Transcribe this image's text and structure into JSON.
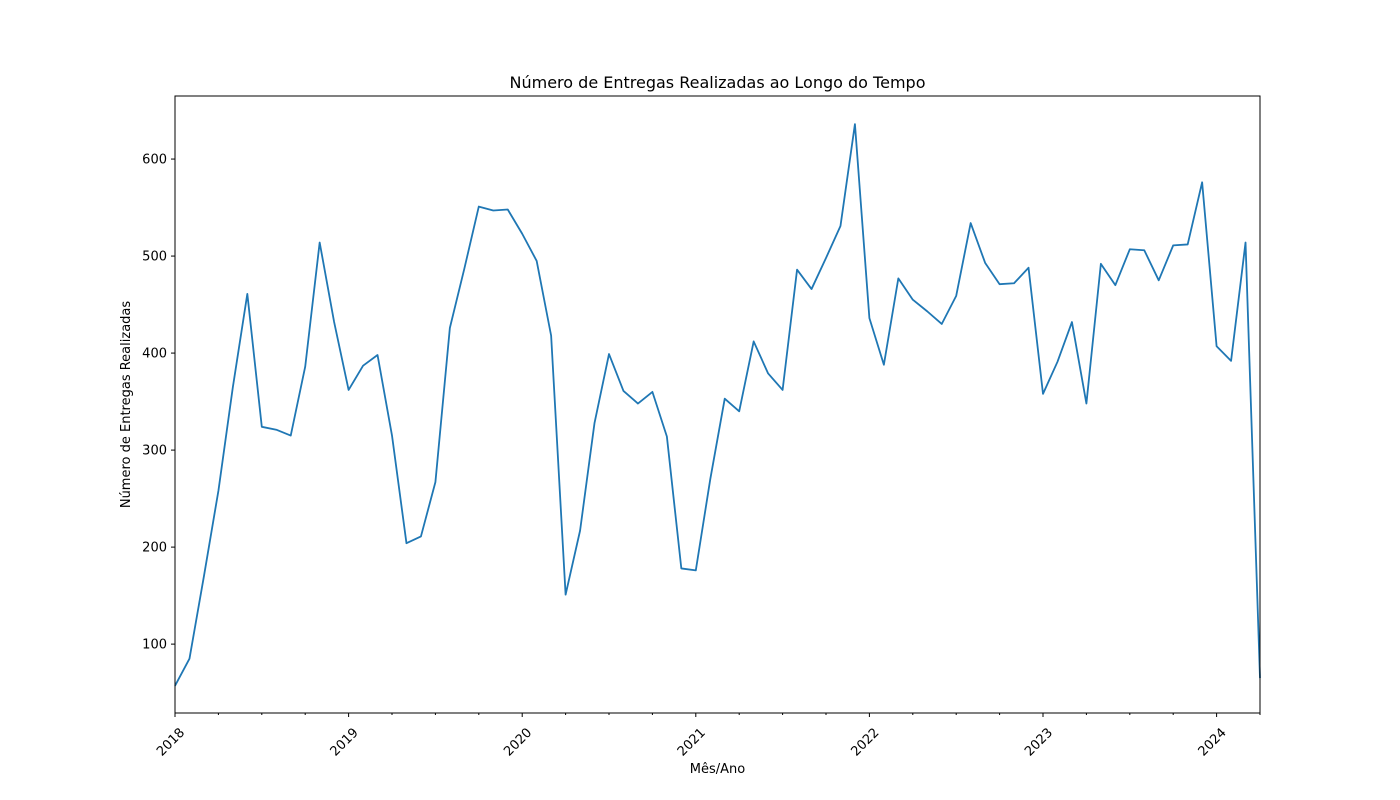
{
  "chart_data": {
    "type": "line",
    "title": "Número de Entregas Realizadas ao Longo do Tempo",
    "xlabel": "Mês/Ano",
    "ylabel": "Número de Entregas Realizadas",
    "x_tick_labels": [
      "2018",
      "2019",
      "2020",
      "2021",
      "2022",
      "2023",
      "2024"
    ],
    "y_ticks": [
      100,
      200,
      300,
      400,
      500,
      600
    ],
    "xlim": [
      "2018-01",
      "2024-04"
    ],
    "ylim": [
      29,
      665
    ],
    "grid": false,
    "line_color": "#1f77b4",
    "series": [
      {
        "x": [
          "2018-01",
          "2018-02",
          "2018-03",
          "2018-04",
          "2018-05",
          "2018-06",
          "2018-07",
          "2018-08",
          "2018-09",
          "2018-10",
          "2018-11",
          "2018-12",
          "2019-01",
          "2019-02",
          "2019-03",
          "2019-04",
          "2019-05",
          "2019-06",
          "2019-07",
          "2019-08",
          "2019-09",
          "2019-10",
          "2019-11",
          "2019-12",
          "2020-01",
          "2020-02",
          "2020-03",
          "2020-04",
          "2020-05",
          "2020-06",
          "2020-07",
          "2020-08",
          "2020-09",
          "2020-10",
          "2020-11",
          "2020-12",
          "2021-01",
          "2021-02",
          "2021-03",
          "2021-04",
          "2021-05",
          "2021-06",
          "2021-07",
          "2021-08",
          "2021-09",
          "2021-10",
          "2021-11",
          "2021-12",
          "2022-01",
          "2022-02",
          "2022-03",
          "2022-04",
          "2022-05",
          "2022-06",
          "2022-07",
          "2022-08",
          "2022-09",
          "2022-10",
          "2022-11",
          "2022-12",
          "2023-01",
          "2023-02",
          "2023-03",
          "2023-04",
          "2023-05",
          "2023-06",
          "2023-07",
          "2023-08",
          "2023-09",
          "2023-10",
          "2023-11",
          "2023-12",
          "2024-01",
          "2024-02",
          "2024-03",
          "2024-04"
        ],
        "values": [
          57,
          85,
          170,
          258,
          365,
          461,
          324,
          321,
          315,
          386,
          514,
          432,
          362,
          387,
          398,
          315,
          204,
          211,
          267,
          426,
          487,
          551,
          547,
          548,
          523,
          495,
          418,
          151,
          217,
          328,
          399,
          361,
          348,
          360,
          314,
          178,
          176,
          270,
          353,
          340,
          412,
          379,
          362,
          486,
          466,
          498,
          531,
          636,
          436,
          388,
          477,
          455,
          443,
          430,
          459,
          534,
          493,
          471,
          472,
          488,
          358,
          391,
          432,
          348,
          492,
          470,
          507,
          506,
          475,
          511,
          512,
          576,
          407,
          392,
          514,
          65
        ]
      }
    ]
  }
}
